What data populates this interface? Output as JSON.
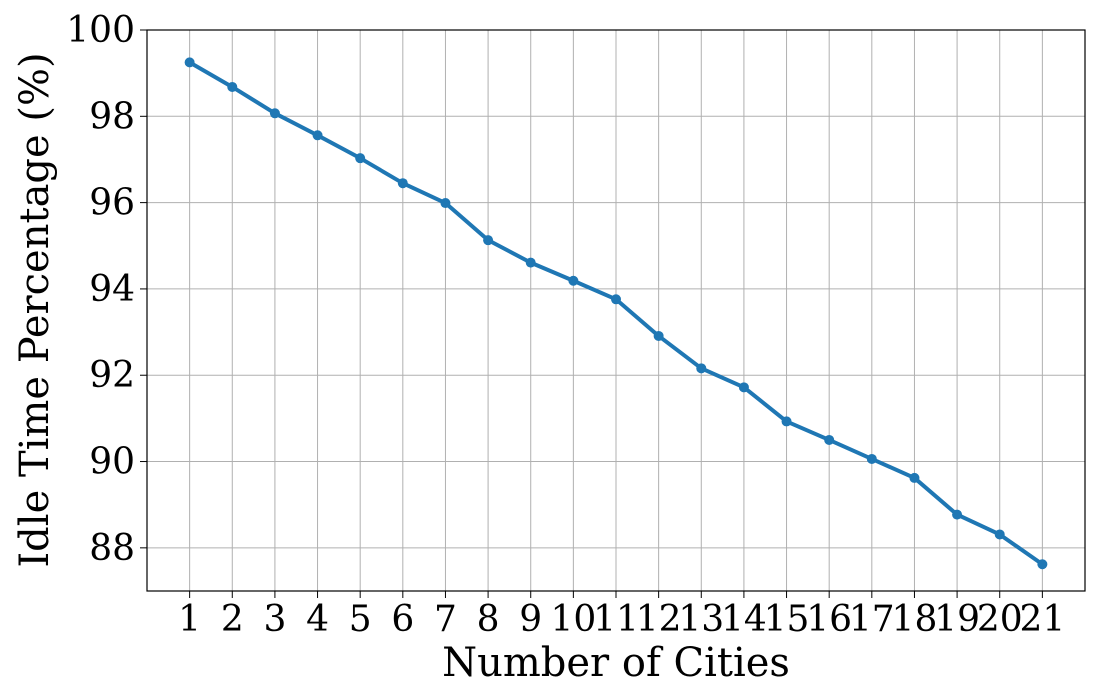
{
  "chart_data": {
    "type": "line",
    "title": "",
    "xlabel": "Number of Cities",
    "ylabel": "Idle Time Percentage (%)",
    "x": [
      1,
      2,
      3,
      4,
      5,
      6,
      7,
      8,
      9,
      10,
      11,
      12,
      13,
      14,
      15,
      16,
      17,
      18,
      19,
      20,
      21
    ],
    "x_tick_labels": [
      "1",
      "2",
      "3",
      "4",
      "5",
      "6",
      "7",
      "8",
      "9",
      "10",
      "11",
      "12",
      "13",
      "14",
      "15",
      "16",
      "17",
      "18",
      "19",
      "20",
      "21"
    ],
    "y_tick_labels": [
      "88",
      "90",
      "92",
      "94",
      "96",
      "98",
      "100"
    ],
    "y_ticks": [
      88,
      90,
      92,
      94,
      96,
      98,
      100
    ],
    "series": [
      {
        "values": [
          99.25,
          98.68,
          98.07,
          97.56,
          97.03,
          96.45,
          95.99,
          95.13,
          94.61,
          94.19,
          93.76,
          92.91,
          92.16,
          91.72,
          90.93,
          90.5,
          90.06,
          89.62,
          88.77,
          88.31,
          87.62
        ],
        "color": "#1f77b4",
        "marker": "circle"
      }
    ],
    "xlim": [
      0,
      22
    ],
    "ylim": [
      87,
      100
    ],
    "grid": true,
    "legend": false
  }
}
